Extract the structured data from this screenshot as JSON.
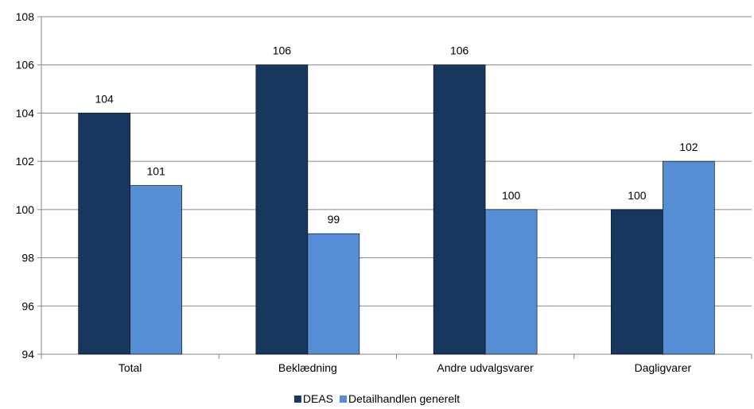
{
  "chart_data": {
    "type": "bar",
    "title": "",
    "xlabel": "",
    "ylabel": "",
    "categories": [
      "Total",
      "Beklædning",
      "Andre udvalgsvarer",
      "Dagligvarer"
    ],
    "series": [
      {
        "name": "DEAS",
        "values": [
          104,
          106,
          106,
          100
        ],
        "color": "#17375e"
      },
      {
        "name": "Detailhandlen generelt",
        "values": [
          101,
          99,
          100,
          102
        ],
        "color": "#558ed5"
      }
    ],
    "ylim": [
      94,
      108
    ],
    "yticks": [
      94,
      96,
      98,
      100,
      102,
      104,
      106,
      108
    ],
    "grid": true,
    "legend": "bottom-center",
    "data_labels": true
  }
}
